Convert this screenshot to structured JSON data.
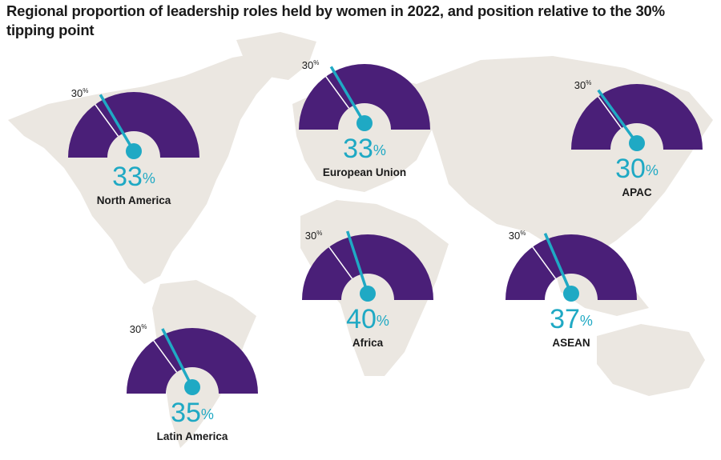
{
  "title": "Regional proportion of leadership roles held by women in 2022, and position relative to the 30% tipping point",
  "colors": {
    "gauge": "#4a1f78",
    "needle": "#1fa9c4",
    "map": "#ebe7e1",
    "threshold_line": "#ffffff"
  },
  "chart_data": {
    "type": "gauge",
    "title": "Regional proportion of leadership roles held by women in 2022, and position relative to the 30% tipping point",
    "scale": [
      0,
      100
    ],
    "threshold": 30,
    "threshold_label": "30%",
    "unit": "%",
    "regions": [
      {
        "name": "North America",
        "value": 33,
        "value_label": "33",
        "position": "north-america"
      },
      {
        "name": "European Union",
        "value": 33,
        "value_label": "33",
        "position": "europe"
      },
      {
        "name": "APAC",
        "value": 30,
        "value_label": "30",
        "position": "east-asia"
      },
      {
        "name": "Africa",
        "value": 40,
        "value_label": "40",
        "position": "africa"
      },
      {
        "name": "ASEAN",
        "value": 37,
        "value_label": "37",
        "position": "southeast-asia"
      },
      {
        "name": "Latin America",
        "value": 35,
        "value_label": "35",
        "position": "south-america"
      }
    ]
  }
}
